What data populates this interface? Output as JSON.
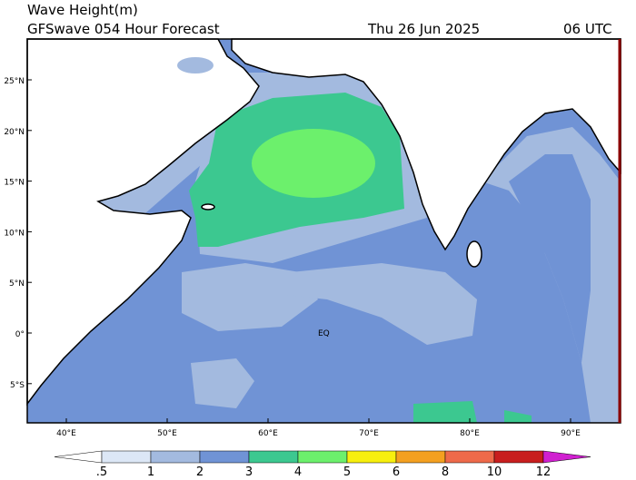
{
  "header": {
    "title": "Wave Height(m)",
    "model": "GFSwave 054 Hour Forecast",
    "date": "Thu 26 Jun 2025",
    "time": "06 UTC"
  },
  "map": {
    "lat_labels": [
      "25°N",
      "20°N",
      "15°N",
      "10°N",
      "5°N",
      "0°",
      "5°S"
    ],
    "lon_labels": [
      "40°E",
      "50°E",
      "60°E",
      "70°E",
      "80°E",
      "90°E"
    ],
    "eq_label": "EQ"
  },
  "colorbar": {
    "labels": [
      ".5",
      "1",
      "2",
      "3",
      "4",
      "5",
      "6",
      "8",
      "10",
      "12"
    ],
    "colors": [
      "#ffffff",
      "#dce7f6",
      "#a3badf",
      "#7093d5",
      "#3cc890",
      "#6cf06c",
      "#f7ef0e",
      "#f4a020",
      "#ee6a4a",
      "#c81e1e",
      "#d020d0"
    ]
  }
}
